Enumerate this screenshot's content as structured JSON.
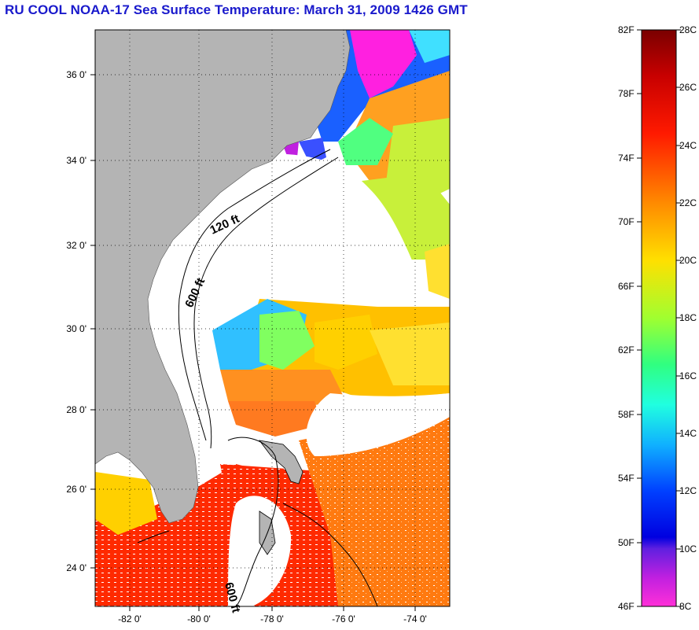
{
  "title": "RU COOL  NOAA-17  Sea Surface Temperature:  March 31, 2009 1426 GMT",
  "map": {
    "lat_labels": [
      "36 0'",
      "34 0'",
      "32 0'",
      "30 0'",
      "28 0'",
      "26 0'",
      "24 0'"
    ],
    "lon_labels": [
      "-82 0'",
      "-80 0'",
      "-78 0'",
      "-76 0'",
      "-74 0'"
    ],
    "contour_labels": [
      "120 ft",
      "600 ft",
      "600 ft"
    ],
    "colors": {
      "land": "#b4b4b4",
      "cloud_mask": "#ffffff",
      "warm": "#ff2200",
      "hot": "#ff5a10",
      "orange": "#ff8a10",
      "yellow": "#ffd700",
      "yellowgreen": "#c8f03a",
      "green": "#50ff50",
      "cyan": "#20d0ff",
      "blue": "#1a50ff",
      "magenta": "#ff20e0"
    }
  },
  "colorbar": {
    "fahrenheit_labels": [
      "82F",
      "78F",
      "74F",
      "70F",
      "66F",
      "62F",
      "58F",
      "54F",
      "50F",
      "46F"
    ],
    "celsius_labels": [
      "28C",
      "26C",
      "24C",
      "22C",
      "20C",
      "18C",
      "16C",
      "14C",
      "12C",
      "10C",
      "8C"
    ],
    "range_c": [
      8,
      28
    ],
    "range_f": [
      46,
      82
    ]
  }
}
